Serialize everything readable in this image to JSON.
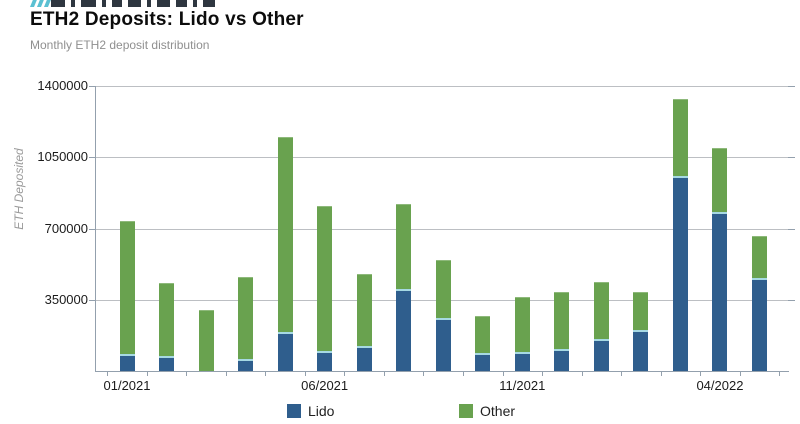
{
  "header": {
    "logo_icon": "cropped-wordmark-fragment",
    "title": "ETH2 Deposits: Lido vs Other",
    "subtitle": "Monthly ETH2 deposit distribution"
  },
  "colors": {
    "lido_blue": "#2f5e8d",
    "other_green": "#69a24f",
    "lido_top_edge": "#a6d9e3",
    "gridline": "#bcbfc3",
    "axis": "#93a0ad",
    "title_text": "#0c0c0c",
    "subtitle_text": "#8f8f8f",
    "tick_text": "#1b1b1b",
    "logo_teal": "#5ac0d2",
    "logo_dark": "#2e3640"
  },
  "chart_data": {
    "type": "bar",
    "stacked": true,
    "title": "ETH2 Deposits: Lido vs Other",
    "subtitle": "Monthly ETH2 deposit distribution",
    "xlabel": "",
    "ylabel": "ETH Deposited",
    "ylim": [
      0,
      1400000
    ],
    "y_ticks": [
      350000,
      700000,
      1050000,
      1400000
    ],
    "grid": "horizontal",
    "legend_position": "bottom",
    "categories": [
      "01/2021",
      "02/2021",
      "03/2021",
      "04/2021",
      "05/2021",
      "06/2021",
      "07/2021",
      "08/2021",
      "09/2021",
      "10/2021",
      "11/2021",
      "12/2021",
      "01/2022",
      "02/2022",
      "03/2022",
      "04/2022",
      "05/2022"
    ],
    "x_axis_labels": [
      {
        "index": 0,
        "label": "01/2021"
      },
      {
        "index": 5,
        "label": "06/2021"
      },
      {
        "index": 10,
        "label": "11/2021"
      },
      {
        "index": 15,
        "label": "04/2022"
      }
    ],
    "series": [
      {
        "name": "Lido",
        "color": "#2f5e8d",
        "values": [
          85000,
          75000,
          0,
          60000,
          190000,
          100000,
          125000,
          405000,
          260000,
          90000,
          95000,
          110000,
          155000,
          200000,
          960000,
          780000,
          455000
        ]
      },
      {
        "name": "Other",
        "color": "#69a24f",
        "values": [
          650000,
          355000,
          300000,
          400000,
          960000,
          710000,
          350000,
          415000,
          285000,
          180000,
          270000,
          280000,
          280000,
          190000,
          375000,
          315000,
          210000
        ]
      }
    ]
  }
}
